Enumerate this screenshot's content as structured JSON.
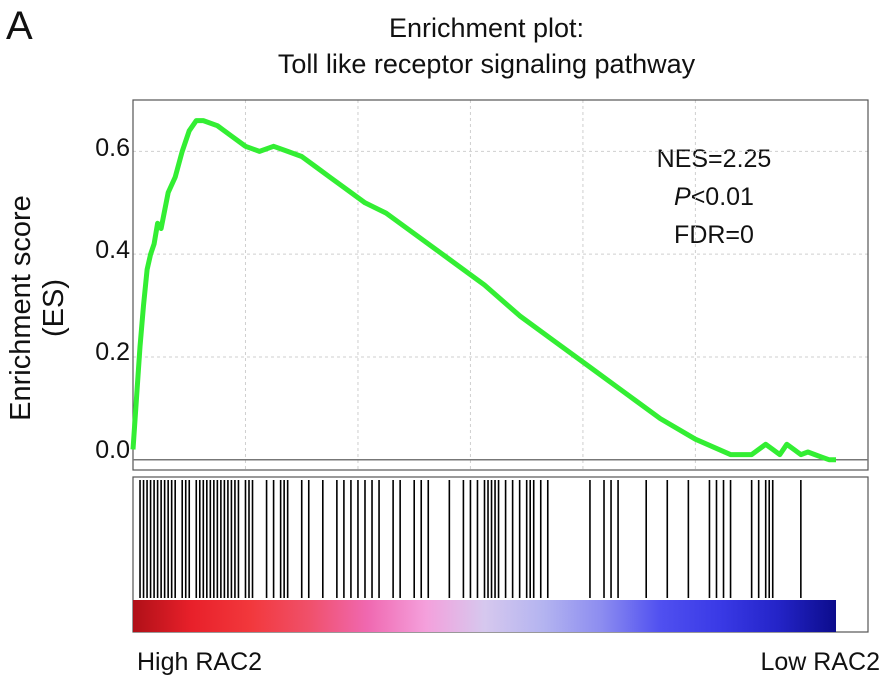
{
  "panel_label": "A",
  "chart_data": {
    "type": "line",
    "title": [
      "Enrichment plot:",
      "Toll like receptor signaling pathway"
    ],
    "ylabel": "Enrichment score (ES)",
    "ylim": [
      -0.02,
      0.7
    ],
    "yticks": [
      "0.0",
      "0.2",
      "0.4",
      "0.6"
    ],
    "grid": true,
    "xlabel_left": "High RAC2",
    "xlabel_right": "Low RAC2",
    "stats": {
      "nes": "NES=2.25",
      "p_italic": "P",
      "p_rest": "<0.01",
      "fdr": "FDR=0"
    },
    "line_color": "#33ee33",
    "series": [
      {
        "x": [
          0,
          0.5,
          1,
          1.5,
          2,
          2.5,
          3,
          3.5,
          4,
          5,
          6,
          7,
          8,
          9,
          10,
          12,
          14,
          16,
          18,
          20,
          22,
          24,
          26,
          28,
          30,
          33,
          36,
          40,
          45,
          50,
          55,
          60,
          65,
          70,
          75,
          80,
          85,
          88,
          90,
          91,
          92,
          93,
          94,
          95,
          96,
          97,
          98,
          99,
          100
        ],
        "values": [
          0.02,
          0.12,
          0.22,
          0.3,
          0.37,
          0.4,
          0.42,
          0.46,
          0.45,
          0.52,
          0.55,
          0.6,
          0.64,
          0.66,
          0.66,
          0.65,
          0.63,
          0.61,
          0.6,
          0.61,
          0.6,
          0.59,
          0.57,
          0.55,
          0.53,
          0.5,
          0.48,
          0.44,
          0.39,
          0.34,
          0.28,
          0.23,
          0.18,
          0.13,
          0.08,
          0.04,
          0.01,
          0.01,
          0.03,
          0.02,
          0.01,
          0.03,
          0.02,
          0.01,
          0.015,
          0.01,
          0.005,
          0.0,
          0.0
        ]
      }
    ],
    "gene_hits": [
      1,
      1.5,
      2,
      2.5,
      3,
      3.5,
      4,
      4.5,
      5,
      5.5,
      6,
      7,
      7.5,
      8,
      9,
      9.5,
      10,
      10.5,
      11,
      11.5,
      12,
      12.5,
      13,
      13.5,
      14,
      14.5,
      15,
      16,
      16.5,
      17,
      19,
      20,
      21,
      21.5,
      22,
      24,
      25,
      27,
      29,
      30,
      31,
      32,
      33,
      34,
      35,
      37,
      38,
      40,
      41,
      42,
      45,
      47,
      48,
      49,
      50,
      50.5,
      51,
      51.5,
      52,
      53,
      54,
      55,
      56,
      56.5,
      57,
      58,
      59,
      65,
      67,
      68,
      69,
      73,
      76,
      79,
      82,
      83,
      84,
      85,
      88,
      89,
      90,
      90.5,
      91,
      95
    ],
    "heatmap_gradient": [
      "#b01018",
      "#e8202a",
      "#f2383c",
      "#f0506a",
      "#f068b0",
      "#f4a0dc",
      "#d6c8ee",
      "#b4b4f0",
      "#8c8cf0",
      "#5050f0",
      "#3a3ae6",
      "#2424c8",
      "#0c0c8c"
    ]
  }
}
